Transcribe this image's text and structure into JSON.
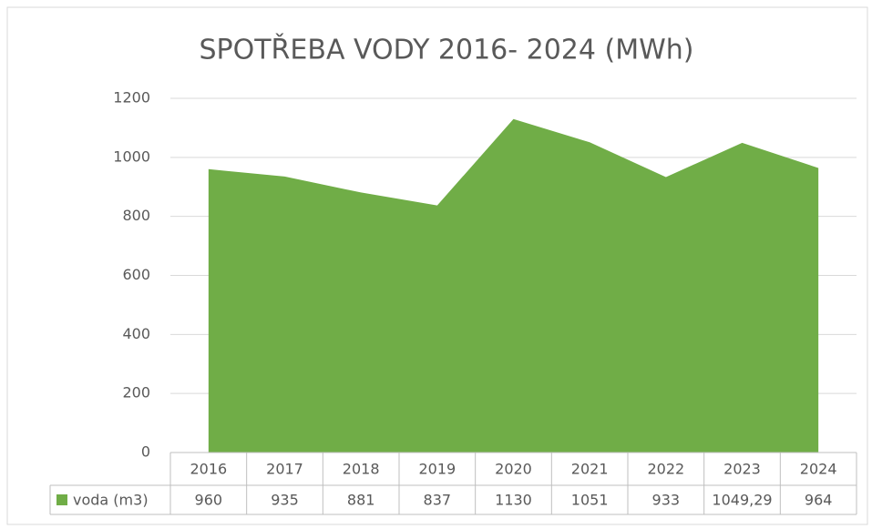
{
  "chart_data": {
    "type": "area",
    "title": "SPOTŘEBA VODY 2016- 2024 (MWh)",
    "categories": [
      "2016",
      "2017",
      "2018",
      "2019",
      "2020",
      "2021",
      "2022",
      "2023",
      "2024"
    ],
    "series": [
      {
        "name": "voda (m3)",
        "color": "#70ad47",
        "values": [
          960,
          935,
          881,
          837,
          1130,
          1051,
          933,
          1049.29,
          964
        ],
        "value_labels": [
          "960",
          "935",
          "881",
          "837",
          "1130",
          "1051",
          "933",
          "1049,29",
          "964"
        ]
      }
    ],
    "ylim": [
      0,
      1200
    ],
    "yticks": [
      0,
      200,
      400,
      600,
      800,
      1000,
      1200
    ],
    "grid": true
  }
}
